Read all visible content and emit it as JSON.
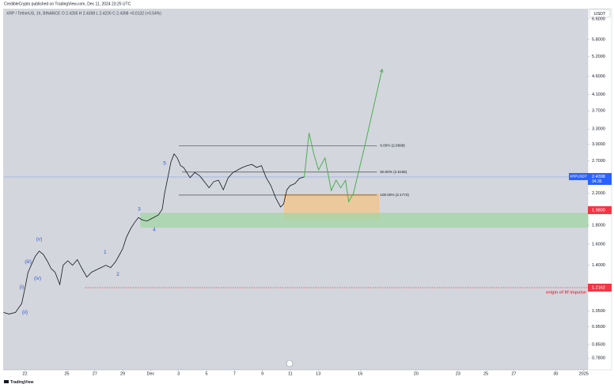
{
  "header": "CredibleCrypto published on TradingView.com, Dec 11, 2024 23:25 UTC",
  "footer": "TradingView",
  "chart_data": {
    "type": "line",
    "title": "XRP / TetherUS, 1h, BINANCE  O 2.4265  H 2.4398  L 2.4226  C 2.4398  +0.0132 (+0.54%)",
    "y_axis_label": "USDT",
    "log_scale": true,
    "xlim": [
      20.5,
      62.3
    ],
    "ylim": [
      0.725,
      7.0
    ],
    "xticks": [
      22,
      25,
      27,
      29,
      {
        "value": 31,
        "label": "Dec"
      },
      {
        "value": 33,
        "label": "3"
      },
      {
        "value": 35,
        "label": "5"
      },
      {
        "value": 37,
        "label": "7"
      },
      {
        "value": 39,
        "label": "9"
      },
      {
        "value": 41,
        "label": "11"
      },
      {
        "value": 43,
        "label": "13"
      },
      {
        "value": 46,
        "label": "16"
      },
      {
        "value": 50,
        "label": "20"
      },
      {
        "value": 53,
        "label": "23"
      },
      {
        "value": 55,
        "label": "25"
      },
      {
        "value": 57,
        "label": "27"
      },
      {
        "value": 60,
        "label": "30"
      },
      {
        "value": 62,
        "label": "2025"
      }
    ],
    "yticks": [
      {
        "value": 6.6,
        "label": "6.6000"
      },
      {
        "value": 5.8,
        "label": "5.8000"
      },
      {
        "value": 5.2,
        "label": "5.2000"
      },
      {
        "value": 4.6,
        "label": "4.6000"
      },
      {
        "value": 4.1,
        "label": "4.1000"
      },
      {
        "value": 3.7,
        "label": "3.7000"
      },
      {
        "value": 3.3,
        "label": "3.3000"
      },
      {
        "value": 3.0,
        "label": "3.0000"
      },
      {
        "value": 2.7,
        "label": "2.7000"
      },
      {
        "value": 2.2,
        "label": "2.2000"
      },
      {
        "value": 1.8,
        "label": "1.8000"
      },
      {
        "value": 1.6,
        "label": "1.6000"
      },
      {
        "value": 1.4,
        "label": "1.4000"
      },
      {
        "value": 1.05,
        "label": "1.0500"
      },
      {
        "value": 0.95,
        "label": "0.9500"
      },
      {
        "value": 0.85,
        "label": "0.8500"
      },
      {
        "value": 0.78,
        "label": "0.7800"
      }
    ],
    "price": {
      "color": "#131722",
      "x": [
        20.47,
        20.86,
        21.32,
        21.77,
        22,
        22.23,
        22.45,
        22.74,
        23.02,
        23.31,
        23.59,
        23.88,
        24.16,
        24.5,
        24.73,
        25.07,
        25.41,
        25.75,
        26.09,
        26.43,
        26.77,
        27.11,
        27.45,
        27.8,
        28.14,
        28.48,
        28.7,
        28.99,
        29.27,
        29.56,
        29.84,
        30.13,
        30.41,
        30.75,
        31.09,
        31.55,
        31.83,
        32,
        32.23,
        32.45,
        32.68,
        32.91,
        33.14,
        33.36,
        33.59,
        33.82,
        34.16,
        34.5,
        34.84,
        35.18,
        35.52,
        35.86,
        36.2,
        36.55,
        36.89,
        37.23,
        37.57,
        37.91,
        38.25,
        38.59,
        38.93,
        39.27,
        39.61,
        39.95,
        40.3,
        40.52,
        40.75,
        40.98,
        41.32,
        41.66,
        42
      ],
      "values": [
        1.04,
        1.03,
        1.04,
        1.1,
        1.21,
        1.34,
        1.4,
        1.48,
        1.53,
        1.5,
        1.44,
        1.37,
        1.34,
        1.24,
        1.4,
        1.44,
        1.4,
        1.45,
        1.37,
        1.3,
        1.34,
        1.36,
        1.38,
        1.4,
        1.38,
        1.43,
        1.48,
        1.55,
        1.67,
        1.76,
        1.83,
        1.89,
        1.86,
        1.85,
        1.88,
        1.92,
        1.99,
        2.2,
        2.43,
        2.68,
        2.82,
        2.75,
        2.62,
        2.59,
        2.51,
        2.43,
        2.51,
        2.46,
        2.37,
        2.28,
        2.37,
        2.39,
        2.25,
        2.43,
        2.51,
        2.55,
        2.59,
        2.62,
        2.64,
        2.59,
        2.62,
        2.43,
        2.31,
        2.14,
        2.02,
        2.06,
        2.25,
        2.31,
        2.34,
        2.42,
        2.44
      ]
    },
    "projection": {
      "color": "#4caf50",
      "x": [
        42,
        42.34,
        42.68,
        43.02,
        43.48,
        43.93,
        44.27,
        44.61,
        44.95,
        45.18,
        45.52,
        46.32,
        47.57
      ],
      "values": [
        2.44,
        3.22,
        2.82,
        2.55,
        2.75,
        2.24,
        2.39,
        2.28,
        2.39,
        2.09,
        2.2,
        2.96,
        4.8
      ]
    },
    "fib_levels": [
      {
        "label": "0.00% (2.9698)",
        "value": 2.9698,
        "x": [
          33.02,
          47.2
        ]
      },
      {
        "label": "50.00% (2.5165)",
        "value": 2.5165,
        "x": [
          33.25,
          47.2
        ]
      },
      {
        "label": "100.00% (2.1772)",
        "value": 2.1772,
        "x": [
          33.02,
          47.2
        ]
      }
    ],
    "zones": [
      {
        "color": "#f3c58c",
        "x": [
          40.58,
          47.34
        ],
        "y": [
          1.88,
          2.19
        ]
      },
      {
        "color": "#a5d6a7",
        "x": [
          30.3,
          62.3
        ],
        "y": [
          1.78,
          1.94
        ]
      }
    ],
    "origin_line": {
      "value": 1.2162,
      "x_start": 26.32,
      "text": "origin of ltf impulse",
      "color": "#f23645"
    },
    "last_price": {
      "value": 2.4398,
      "symbol": "XRPUSDT",
      "countdown": "34:35",
      "color": "#2962ff"
    },
    "alert_price": {
      "value": 1.98,
      "label": "1.9800",
      "color": "#f23645"
    },
    "wave_labels": [
      {
        "text": "5",
        "x": 32,
        "y": 2.66
      },
      {
        "text": "3",
        "x": 30.18,
        "y": 1.99
      },
      {
        "text": "4",
        "x": 31.26,
        "y": 1.75
      },
      {
        "text": "1",
        "x": 27.74,
        "y": 1.52
      },
      {
        "text": "2",
        "x": 28.65,
        "y": 1.32
      },
      {
        "text": "(v)",
        "x": 23.02,
        "y": 1.65
      },
      {
        "text": "(iii)",
        "x": 22.23,
        "y": 1.43
      },
      {
        "text": "(iv)",
        "x": 22.91,
        "y": 1.29
      },
      {
        "text": "(i)",
        "x": 21.77,
        "y": 1.22
      },
      {
        "text": "(ii)",
        "x": 22,
        "y": 1.04
      }
    ],
    "wave_color": "#2f5bd8"
  }
}
